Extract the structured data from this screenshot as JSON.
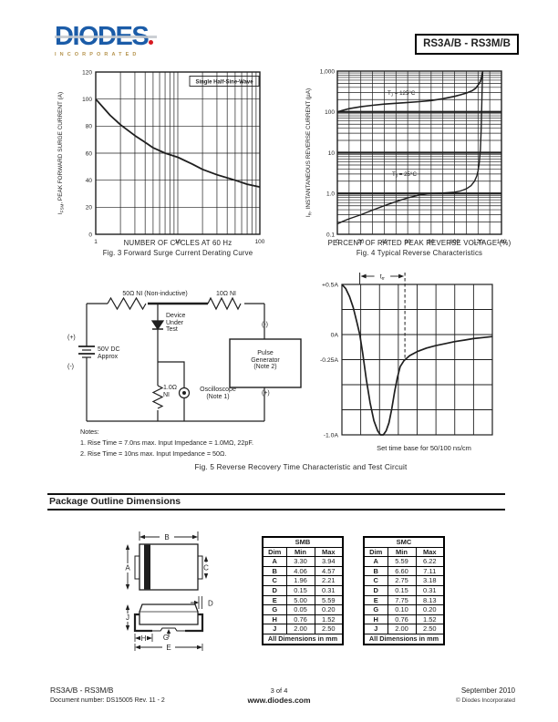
{
  "page_header": {
    "logo_text": "DIODES",
    "logo_sub": "INCORPORATED",
    "part_number": "RS3A/B - RS3M/B"
  },
  "chart_data": [
    {
      "id": "fig3",
      "type": "line",
      "title": "Fig. 3  Forward Surge Current Derating Curve",
      "xlabel": "NUMBER OF CYCLES AT 60 Hz",
      "ylabel": "IFSM, PEAK FORWARD SURGE CURRENT (A)",
      "ylabel_parts": [
        "I",
        "FSM",
        ", PEAK FORWARD SURGE CURRENT (A)"
      ],
      "xscale": "log",
      "xlim": [
        1,
        100
      ],
      "ylim": [
        0,
        120
      ],
      "xticks": [
        "1",
        "10",
        "100"
      ],
      "yticks": [
        0,
        20,
        40,
        60,
        80,
        100,
        120
      ],
      "grid": true,
      "legend_position": "none",
      "annotation": "Single Half-Sine-Wave",
      "series": [
        {
          "name": "single-half-sine-wave-derating",
          "x": [
            1,
            1.5,
            2,
            3,
            4,
            5,
            7,
            10,
            15,
            20,
            30,
            50,
            70,
            100
          ],
          "y": [
            100,
            88,
            81,
            73,
            68,
            64,
            60,
            57,
            52,
            48,
            44,
            40,
            37,
            35
          ]
        }
      ]
    },
    {
      "id": "fig4",
      "type": "line",
      "title": "Fig. 4  Typical Reverse Characteristics",
      "xlabel": "PERCENT OF RATED PEAK REVERSE VOLTAGE (%)",
      "ylabel": "IR, INSTANTANEOUS REVERSE CURRENT (µA)",
      "ylabel_parts": [
        "I",
        "R",
        ", INSTANTANEOUS REVERSE CURRENT (µA)"
      ],
      "yscale": "log",
      "xlim": [
        0,
        140
      ],
      "ylim": [
        0.1,
        1000
      ],
      "xticks": [
        0,
        20,
        40,
        60,
        80,
        100,
        120,
        140
      ],
      "ytick_labels": [
        "1,000",
        "100",
        "10",
        "1.0",
        "0.1"
      ],
      "ytick_values": [
        1000,
        100,
        10,
        1,
        0.1
      ],
      "grid": true,
      "series": [
        {
          "name": "tj-125c",
          "label_parts": [
            "T",
            "J",
            " = 125°C"
          ],
          "x": [
            0,
            5,
            10,
            20,
            30,
            40,
            50,
            60,
            70,
            80,
            90,
            100,
            105,
            110,
            115,
            118,
            120,
            122,
            123,
            123.5,
            124
          ],
          "y": [
            100,
            110,
            120,
            134,
            145,
            155,
            163,
            170,
            178,
            190,
            210,
            240,
            262,
            290,
            330,
            380,
            450,
            560,
            700,
            850,
            1000
          ]
        },
        {
          "name": "tj-25c",
          "label_parts": [
            "T",
            "J",
            " = 25°C"
          ],
          "x": [
            0,
            5,
            10,
            20,
            30,
            40,
            50,
            60,
            70,
            80,
            90,
            100,
            105,
            110,
            114,
            117,
            119,
            120,
            121,
            122,
            122.7,
            123.2,
            123.6,
            124
          ],
          "y": [
            0.18,
            0.21,
            0.24,
            0.3,
            0.39,
            0.5,
            0.63,
            0.78,
            0.92,
            1.0,
            1.03,
            1.08,
            1.15,
            1.3,
            1.55,
            2.0,
            2.7,
            3.6,
            5.5,
            12,
            40,
            150,
            450,
            1000
          ]
        }
      ]
    },
    {
      "id": "fig5-waveform",
      "type": "line",
      "xlabel": "Set time base for 50/100 ns/cm",
      "xlim": [
        0,
        8
      ],
      "ylim": [
        -1,
        0.5
      ],
      "cols": 8,
      "rows": 6,
      "ytick_labels": [
        [
          "+0.5A",
          0.5
        ],
        [
          "0A",
          0
        ],
        [
          "-0.25A",
          -0.25
        ],
        [
          "-1.0A",
          -1
        ]
      ],
      "annotation_parts": [
        "t",
        "rr"
      ],
      "trr_span": [
        0.95,
        3.35
      ],
      "series": [
        {
          "name": "reverse-recovery-current",
          "x": [
            0,
            0.2,
            0.4,
            0.6,
            0.8,
            0.95,
            1.1,
            1.3,
            1.5,
            1.7,
            1.9,
            2.05,
            2.2,
            2.35,
            2.5,
            2.65,
            2.8,
            2.95,
            3.1,
            3.3,
            3.6,
            4,
            4.5,
            5,
            5.5,
            6,
            6.5,
            7,
            7.5,
            8
          ],
          "y": [
            0.5,
            0.46,
            0.38,
            0.27,
            0.12,
            0,
            -0.18,
            -0.45,
            -0.68,
            -0.86,
            -0.96,
            -1,
            -1,
            -0.96,
            -0.88,
            -0.74,
            -0.57,
            -0.43,
            -0.32,
            -0.26,
            -0.21,
            -0.17,
            -0.135,
            -0.11,
            -0.09,
            -0.07,
            -0.055,
            -0.04,
            -0.03,
            -0.02
          ]
        }
      ]
    }
  ],
  "circuit": {
    "r1_label": "50Ω NI (Non-inductive)",
    "r2_label": "10Ω NI",
    "dut_label": "Device\nUnder\nTest",
    "source_plus": "(+)",
    "source_minus": "(-)",
    "source_label": "50V DC\nApprox",
    "r3_label": "1.0Ω\nNI",
    "scope_label": "Oscilloscope\n(Note 1)",
    "pulse_label": "Pulse\nGenerator\n(Note 2)",
    "pulse_minus": "(-)",
    "pulse_plus": "(+)",
    "notes_title": "Notes:",
    "note1": "1. Rise Time = 7.0ns max. Input Impedance = 1.0MΩ, 22pF.",
    "note2": "2. Rise Time = 10ns max. Input Impedance = 50Ω."
  },
  "fig5": {
    "caption": "Fig. 5  Reverse Recovery Time Characteristic and Test Circuit"
  },
  "package_section": {
    "title": "Package Outline Dimensions"
  },
  "pkg_labels": {
    "A": "A",
    "B": "B",
    "C": "C",
    "D": "D",
    "E": "E",
    "G": "G",
    "H": "H",
    "J": "J"
  },
  "tables": {
    "smb": {
      "title": "SMB",
      "headers": [
        "Dim",
        "Min",
        "Max"
      ],
      "rows": [
        [
          "A",
          "3.30",
          "3.94"
        ],
        [
          "B",
          "4.06",
          "4.57"
        ],
        [
          "C",
          "1.96",
          "2.21"
        ],
        [
          "D",
          "0.15",
          "0.31"
        ],
        [
          "E",
          "5.00",
          "5.59"
        ],
        [
          "G",
          "0.05",
          "0.20"
        ],
        [
          "H",
          "0.76",
          "1.52"
        ],
        [
          "J",
          "2.00",
          "2.50"
        ]
      ],
      "footer": "All Dimensions in mm"
    },
    "smc": {
      "title": "SMC",
      "headers": [
        "Dim",
        "Min",
        "Max"
      ],
      "rows": [
        [
          "A",
          "5.59",
          "6.22"
        ],
        [
          "B",
          "6.60",
          "7.11"
        ],
        [
          "C",
          "2.75",
          "3.18"
        ],
        [
          "D",
          "0.15",
          "0.31"
        ],
        [
          "E",
          "7.75",
          "8.13"
        ],
        [
          "G",
          "0.10",
          "0.20"
        ],
        [
          "H",
          "0.76",
          "1.52"
        ],
        [
          "J",
          "2.00",
          "2.50"
        ]
      ],
      "footer": "All Dimensions in mm"
    }
  },
  "footer": {
    "part": "RS3A/B - RS3M/B",
    "doc_number": "Document number: DS15005 Rev. 11 - 2",
    "page": "3 of 4",
    "website": "www.diodes.com",
    "date": "September 2010",
    "copyright": "© Diodes Incorporated"
  },
  "colors": {
    "logo_blue": "#1b5ca8",
    "logo_gold": "#b5934d",
    "logo_red": "#d71920",
    "ink": "#1f1f1f"
  }
}
